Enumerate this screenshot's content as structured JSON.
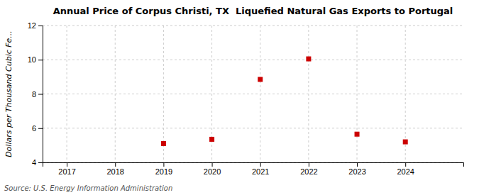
{
  "chart_data": {
    "type": "scatter",
    "title": "Annual Price of Corpus Christi, TX  Liquefied Natural Gas Exports to Portugal",
    "ylabel": "Dollars per Thousand Cubic Fe...",
    "annotations": [
      "Source: U.S. Energy Information Administration"
    ],
    "x": [
      2019,
      2020,
      2021,
      2022,
      2023,
      2024
    ],
    "values": [
      5.1,
      5.35,
      8.85,
      10.05,
      5.65,
      5.2
    ],
    "color": "#cc0000",
    "marker": "square",
    "xlim": [
      2016.5,
      2025.2
    ],
    "ylim": [
      4,
      12
    ],
    "xticks": [
      2017,
      2018,
      2019,
      2020,
      2021,
      2022,
      2023,
      2024
    ],
    "yticks": [
      4,
      6,
      8,
      10,
      12
    ],
    "grid": true
  }
}
